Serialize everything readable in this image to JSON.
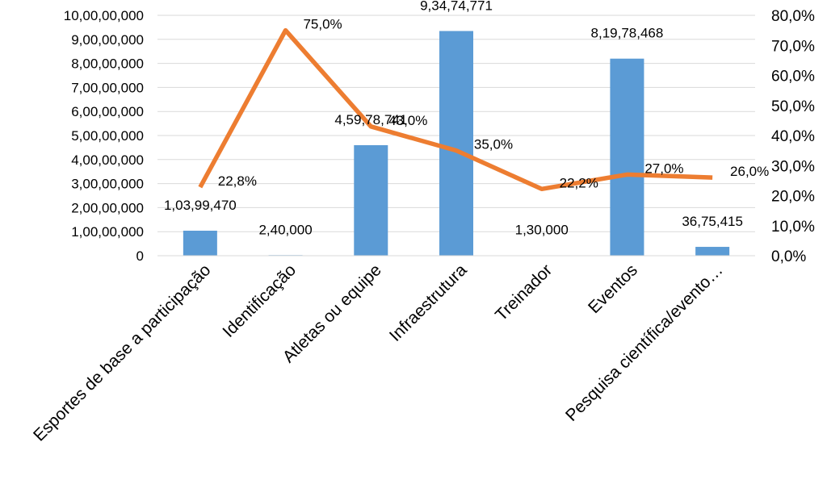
{
  "chart_data": {
    "type": "bar",
    "categories": [
      "Esportes de base a participação",
      "Identificação",
      "Atletas ou equipe",
      "Infraestrutura",
      "Treinador",
      "Eventos",
      "Pesquisa científica/evento…"
    ],
    "series": [
      {
        "type": "bar",
        "axis": "left",
        "color": "#5b9bd5",
        "values": [
          10399470,
          240000,
          45978741,
          93474771,
          130000,
          81978468,
          3675415
        ],
        "labels": [
          "1,03,99,470",
          "2,40,000",
          "4,59,78,741",
          "9,34,74,771",
          "1,30,000",
          "8,19,78,468",
          "36,75,415"
        ]
      },
      {
        "type": "line",
        "axis": "right",
        "color": "#ed7d31",
        "values": [
          22.8,
          75.0,
          43.0,
          35.0,
          22.2,
          27.0,
          26.0
        ],
        "labels": [
          "22,8%",
          "75,0%",
          "43,0%",
          "35,0%",
          "22,2%",
          "27,0%",
          "26,0%"
        ]
      }
    ],
    "y_left": {
      "range": [
        0,
        100000000
      ],
      "ticks": [
        "0",
        "1,00,00,000",
        "2,00,00,000",
        "3,00,00,000",
        "4,00,00,000",
        "5,00,00,000",
        "6,00,00,000",
        "7,00,00,000",
        "8,00,00,000",
        "9,00,00,000",
        "10,00,00,000"
      ]
    },
    "y_right": {
      "range": [
        0,
        80
      ],
      "ticks": [
        "0,0%",
        "10,0%",
        "20,0%",
        "30,0%",
        "40,0%",
        "50,0%",
        "60,0%",
        "70,0%",
        "80,0%"
      ]
    },
    "grid": true,
    "legend": "none"
  }
}
